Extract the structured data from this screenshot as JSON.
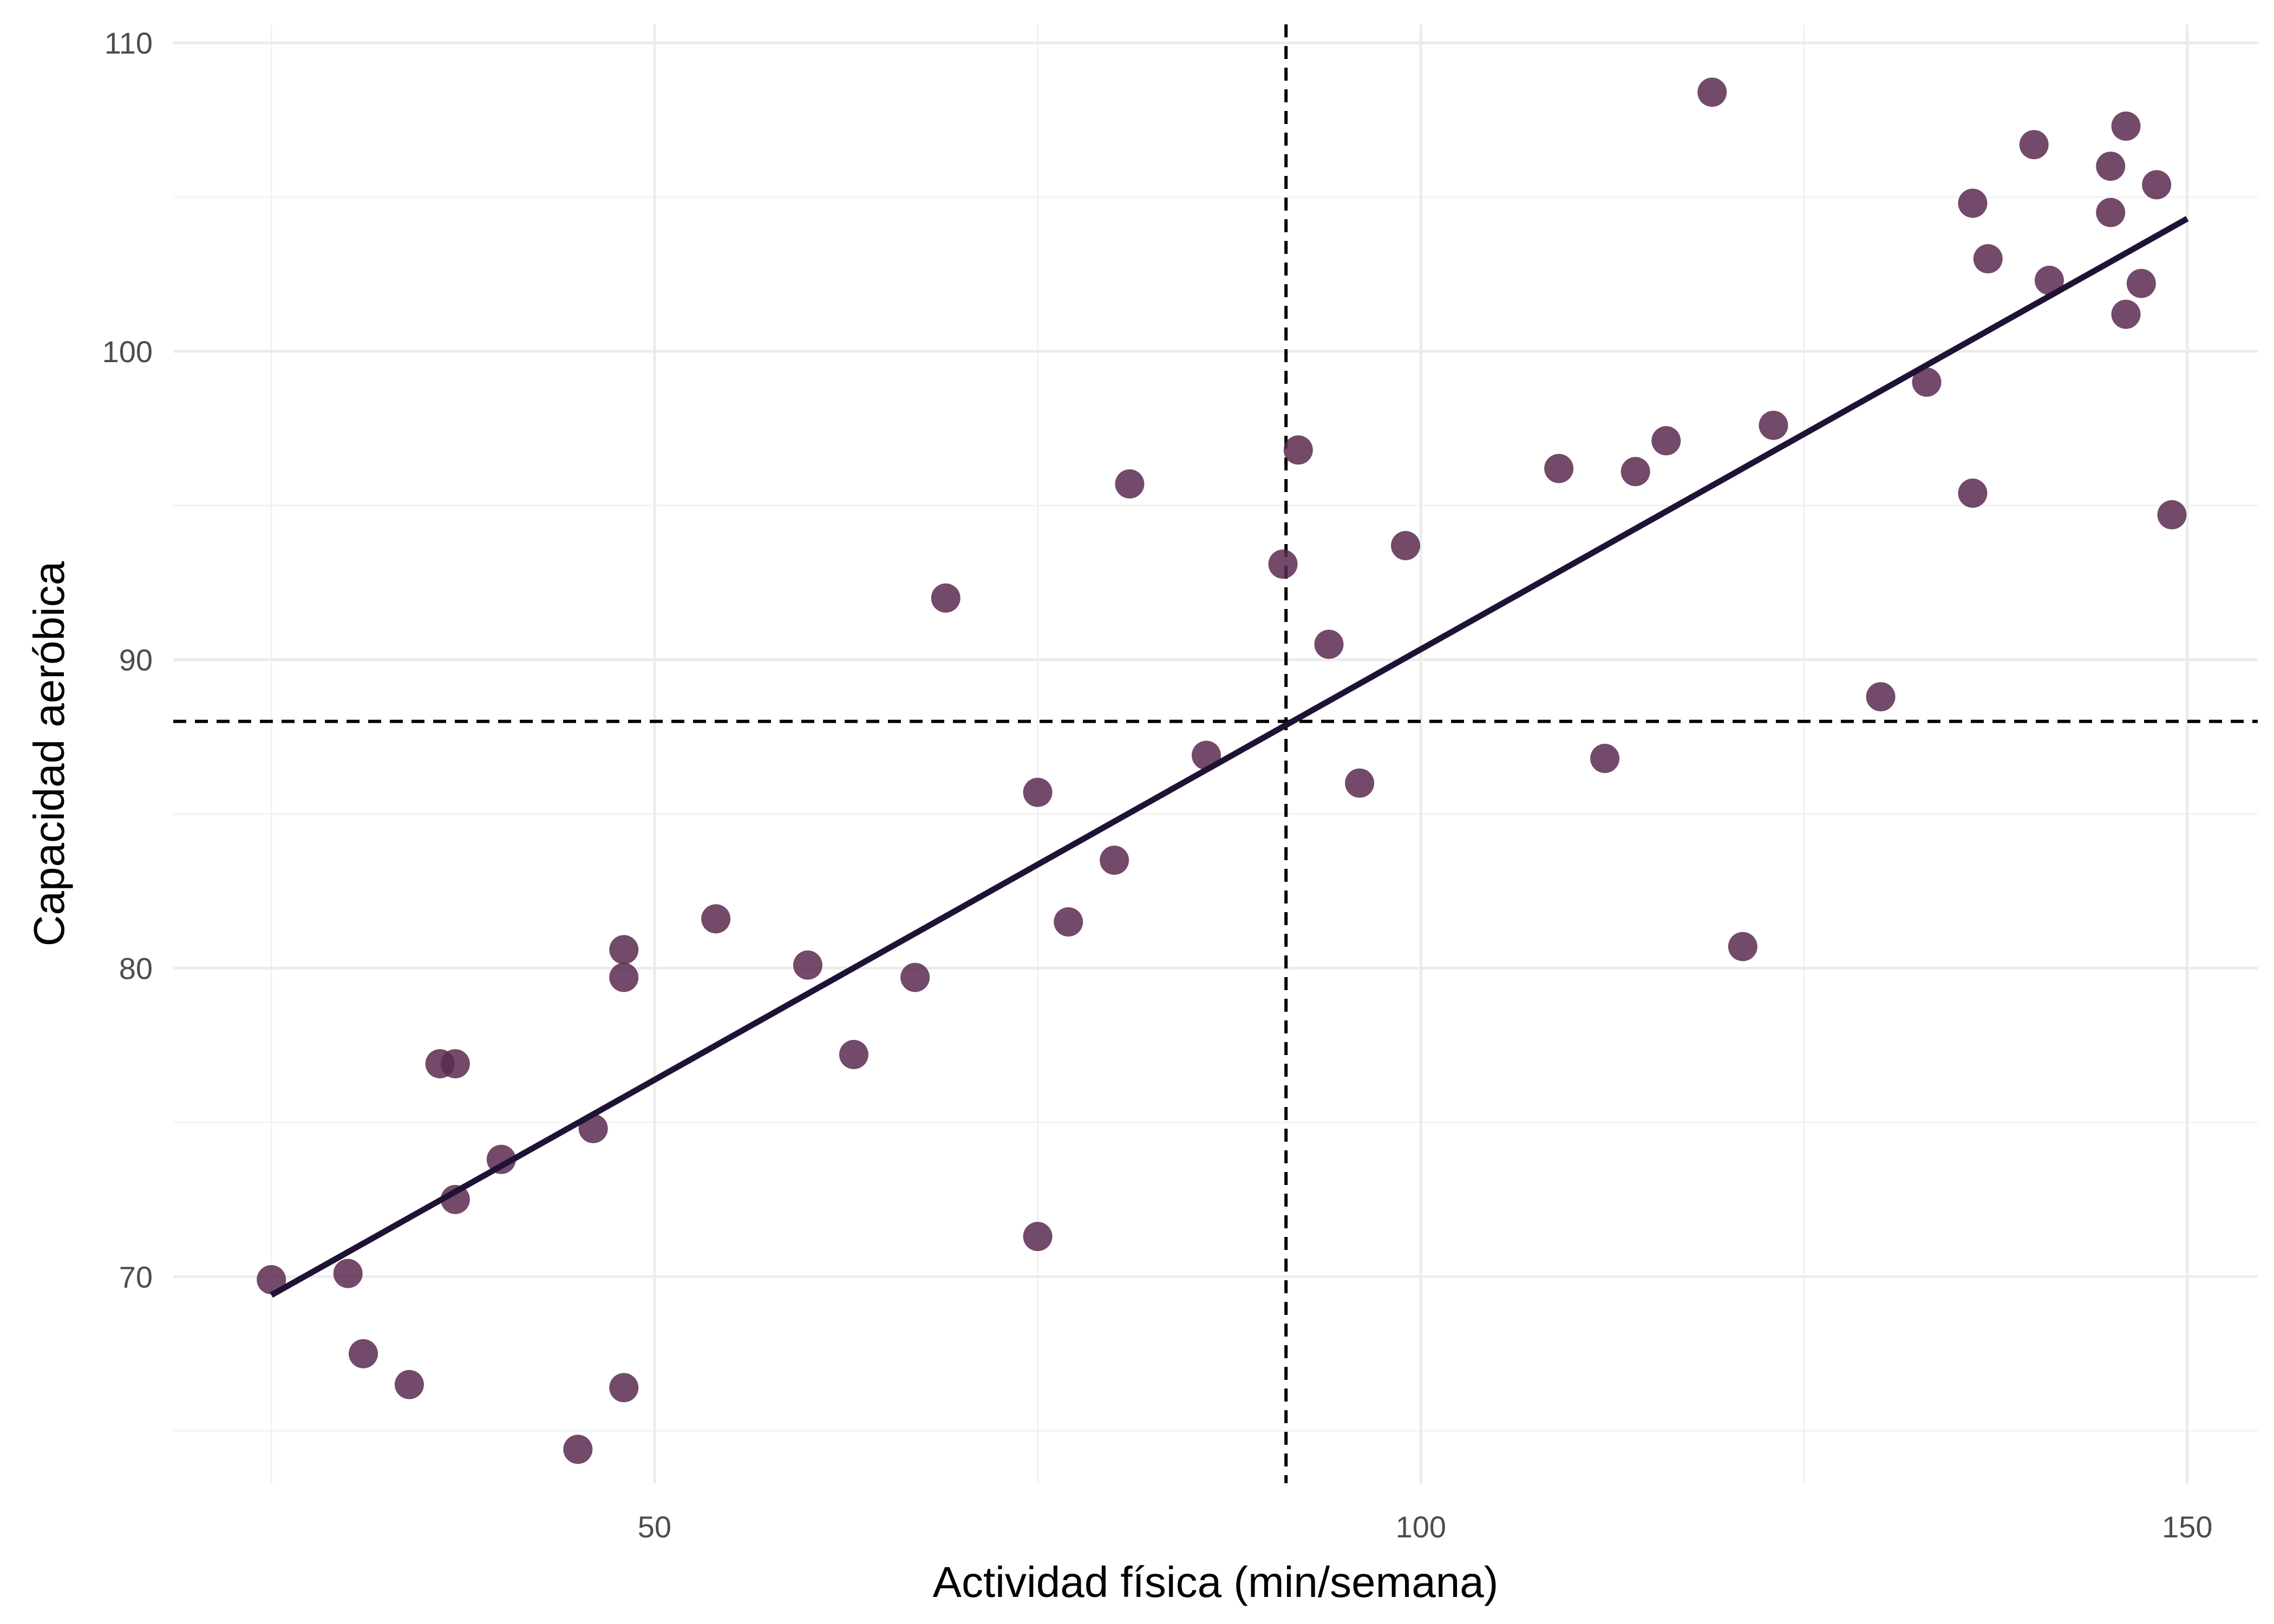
{
  "chart_data": {
    "type": "scatter",
    "title": "",
    "xlabel": "Actividad física (min/semana)",
    "ylabel": "Capacidad aeróbica",
    "xlim": [
      18.6,
      154.6
    ],
    "ylim": [
      63.3,
      110.6
    ],
    "x_ticks": [
      50,
      100,
      150
    ],
    "y_ticks": [
      70,
      80,
      90,
      100,
      110
    ],
    "x_minor_ticks": [
      25,
      75,
      125
    ],
    "y_minor_ticks": [
      65,
      75,
      85,
      95,
      105
    ],
    "grid": true,
    "point_color": "#5b2a50",
    "fit_line_color": "#1f1235",
    "reference_lines": {
      "vertical_x": 91.2,
      "horizontal_y": 88.0
    },
    "fit_line": {
      "x": [
        25,
        150
      ],
      "y": [
        69.4,
        104.3
      ]
    },
    "points": [
      {
        "x": 25,
        "y": 69.9
      },
      {
        "x": 30,
        "y": 70.1
      },
      {
        "x": 31,
        "y": 67.5
      },
      {
        "x": 34,
        "y": 66.5
      },
      {
        "x": 36,
        "y": 76.9
      },
      {
        "x": 37,
        "y": 76.9
      },
      {
        "x": 37,
        "y": 72.5
      },
      {
        "x": 40,
        "y": 73.8
      },
      {
        "x": 45,
        "y": 64.4
      },
      {
        "x": 46,
        "y": 74.8
      },
      {
        "x": 48,
        "y": 80.6
      },
      {
        "x": 48,
        "y": 79.7
      },
      {
        "x": 48,
        "y": 66.4
      },
      {
        "x": 54,
        "y": 81.6
      },
      {
        "x": 60,
        "y": 80.1
      },
      {
        "x": 63,
        "y": 77.2
      },
      {
        "x": 67,
        "y": 79.7
      },
      {
        "x": 69,
        "y": 92.0
      },
      {
        "x": 75,
        "y": 85.7
      },
      {
        "x": 75,
        "y": 71.3
      },
      {
        "x": 77,
        "y": 81.5
      },
      {
        "x": 80,
        "y": 83.5
      },
      {
        "x": 81,
        "y": 95.7
      },
      {
        "x": 86,
        "y": 86.9
      },
      {
        "x": 91,
        "y": 93.1
      },
      {
        "x": 92,
        "y": 96.8
      },
      {
        "x": 94,
        "y": 90.5
      },
      {
        "x": 96,
        "y": 86.0
      },
      {
        "x": 99,
        "y": 93.7
      },
      {
        "x": 109,
        "y": 96.2
      },
      {
        "x": 112,
        "y": 86.8
      },
      {
        "x": 114,
        "y": 96.1
      },
      {
        "x": 116,
        "y": 97.1
      },
      {
        "x": 119,
        "y": 108.4
      },
      {
        "x": 121,
        "y": 80.7
      },
      {
        "x": 123,
        "y": 97.6
      },
      {
        "x": 130,
        "y": 88.8
      },
      {
        "x": 133,
        "y": 99.0
      },
      {
        "x": 136,
        "y": 104.8
      },
      {
        "x": 136,
        "y": 95.4
      },
      {
        "x": 137,
        "y": 103.0
      },
      {
        "x": 140,
        "y": 106.7
      },
      {
        "x": 141,
        "y": 102.3
      },
      {
        "x": 145,
        "y": 106.0
      },
      {
        "x": 145,
        "y": 104.5
      },
      {
        "x": 146,
        "y": 107.3
      },
      {
        "x": 146,
        "y": 101.2
      },
      {
        "x": 147,
        "y": 102.2
      },
      {
        "x": 148,
        "y": 105.4
      },
      {
        "x": 149,
        "y": 94.7
      }
    ]
  }
}
